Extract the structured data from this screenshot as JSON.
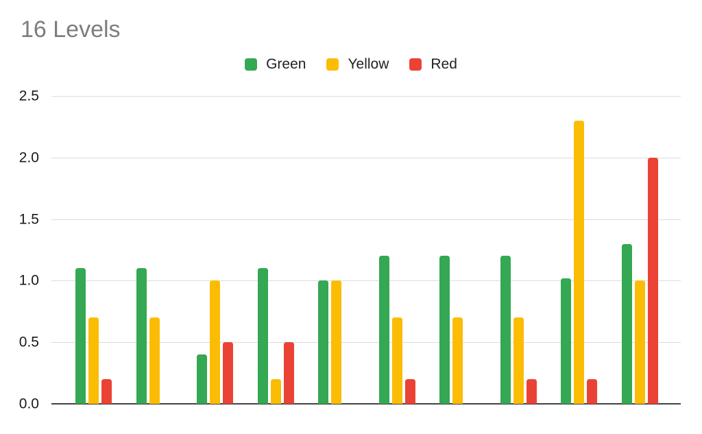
{
  "chart_data": {
    "type": "bar",
    "title": "16 Levels",
    "categories": [
      "",
      "",
      "",
      "",
      "",
      "",
      "",
      "",
      "",
      ""
    ],
    "series": [
      {
        "name": "Green",
        "color": "#34A853",
        "values": [
          1.1,
          1.1,
          0.4,
          1.1,
          1.0,
          1.2,
          1.2,
          1.2,
          1.02,
          1.3
        ]
      },
      {
        "name": "Yellow",
        "color": "#FBBC04",
        "values": [
          0.7,
          0.7,
          1.0,
          0.2,
          1.0,
          0.7,
          0.7,
          0.7,
          2.3,
          1.0
        ]
      },
      {
        "name": "Red",
        "color": "#EA4335",
        "values": [
          0.2,
          0,
          0.5,
          0.5,
          0,
          0.2,
          0,
          0.2,
          0.2,
          2.0
        ]
      }
    ],
    "ylim": [
      0,
      2.5
    ],
    "yticks": [
      0,
      0.5,
      1,
      1.5,
      2,
      2.5
    ],
    "ytick_labels": [
      "0.0",
      "0.5",
      "1.0",
      "1.5",
      "2.0",
      "2.5"
    ],
    "xlabel": "",
    "ylabel": "",
    "grid": true,
    "legend_position": "top",
    "x_tick_labels_visible": false
  },
  "colors": {
    "title_text": "#7d7d7d",
    "axis_text": "#1a1a1a",
    "legend_text": "#212121",
    "gridline": "#dcdcdc",
    "axis_line": "#424242",
    "background": "#ffffff"
  }
}
